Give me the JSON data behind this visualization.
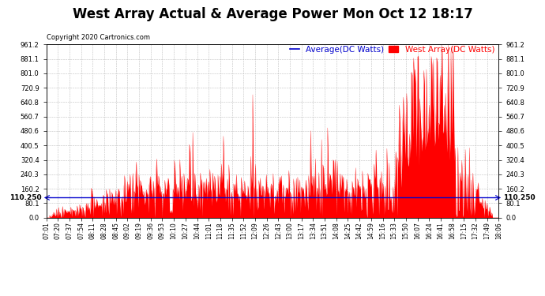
{
  "title": "West Array Actual & Average Power Mon Oct 12 18:17",
  "copyright_text": "Copyright 2020 Cartronics.com",
  "legend_average": "Average(DC Watts)",
  "legend_west": "West Array(DC Watts)",
  "average_value": 110.25,
  "ymax": 961.2,
  "ymin": 0.0,
  "yticks": [
    0.0,
    80.1,
    160.2,
    240.3,
    320.4,
    400.5,
    480.6,
    560.7,
    640.8,
    720.9,
    801.0,
    881.1,
    961.2
  ],
  "avg_label": "110.250",
  "background_color": "#ffffff",
  "grid_color": "#b0b0b0",
  "red_color": "#ff0000",
  "blue_color": "#0000cc",
  "title_fontsize": 12,
  "tick_fontsize": 6.0,
  "xtick_labels": [
    "07:01",
    "07:20",
    "07:37",
    "07:54",
    "08:11",
    "08:28",
    "08:45",
    "09:02",
    "09:19",
    "09:36",
    "09:53",
    "10:10",
    "10:27",
    "10:44",
    "11:01",
    "11:18",
    "11:35",
    "11:52",
    "12:09",
    "12:26",
    "12:43",
    "13:00",
    "13:17",
    "13:34",
    "13:51",
    "14:08",
    "14:25",
    "14:42",
    "14:59",
    "15:16",
    "15:33",
    "15:50",
    "16:07",
    "16:24",
    "16:41",
    "16:58",
    "17:15",
    "17:32",
    "17:49",
    "18:06"
  ]
}
